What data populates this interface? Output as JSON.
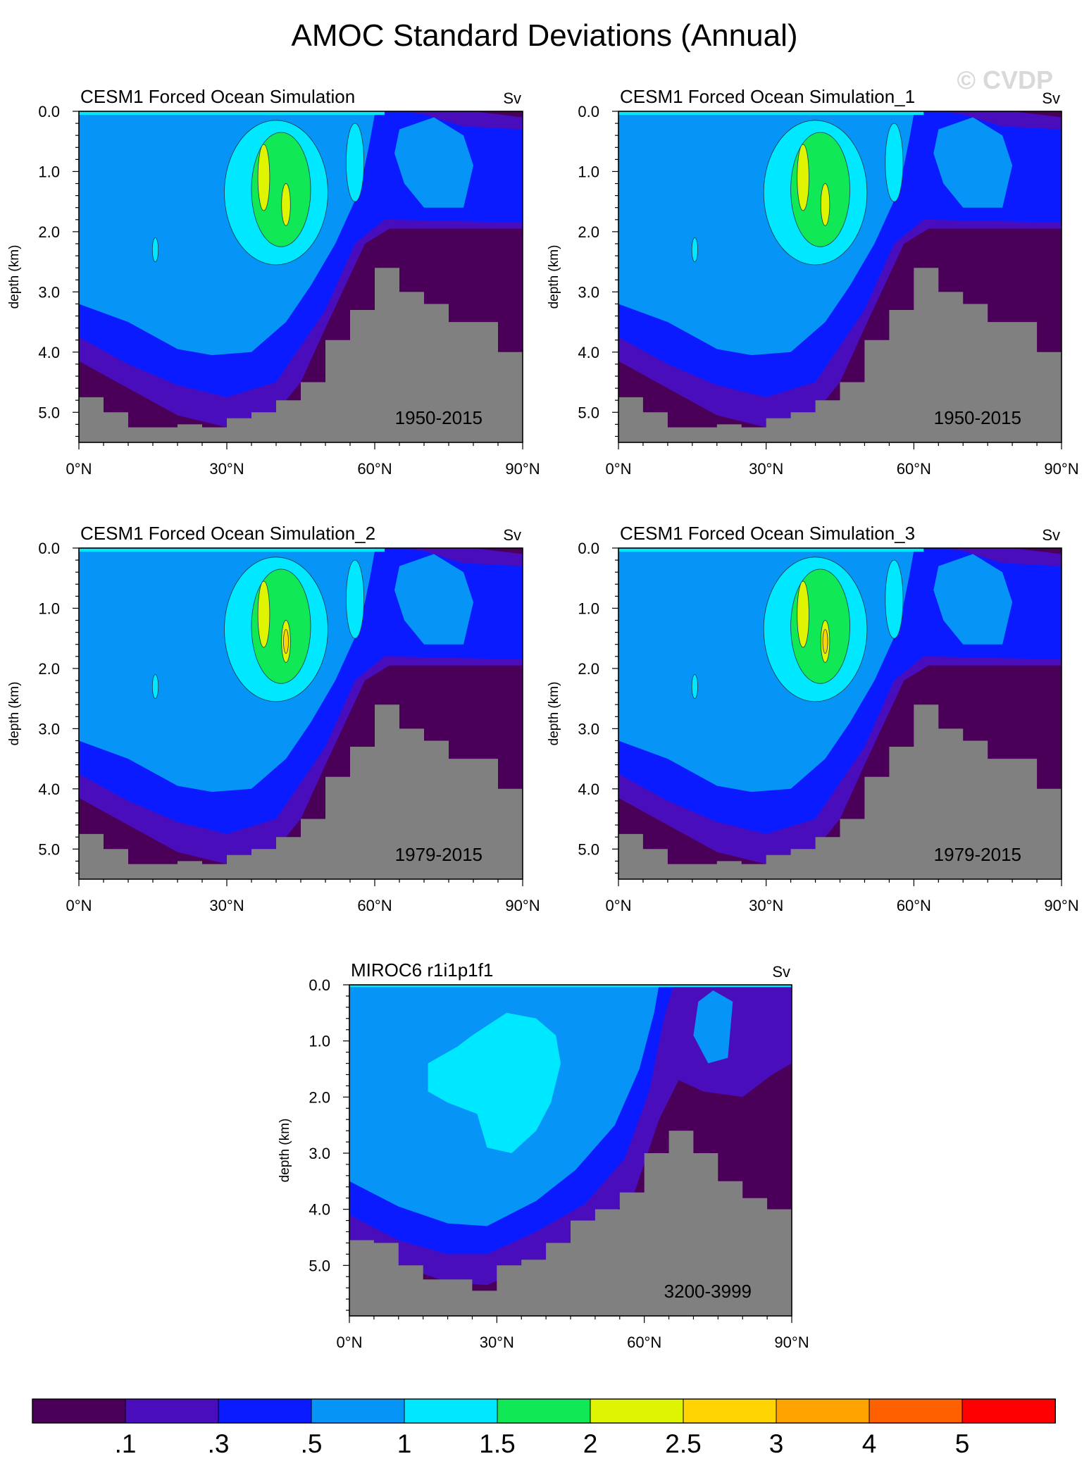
{
  "title": "AMOC Standard Deviations (Annual)",
  "watermark": "© CVDP",
  "chart_data": [
    {
      "type": "contour",
      "title": "CESM1 Forced Ocean Simulation",
      "units": "Sv",
      "period": "1950-2015",
      "xlabel": "",
      "ylabel": "depth (km)",
      "xticks": [
        "0°N",
        "30°N",
        "60°N",
        "90°N"
      ],
      "yticks": [
        "0.0",
        "1.0",
        "2.0",
        "3.0",
        "4.0",
        "5.0"
      ],
      "xlim": [
        0,
        90
      ],
      "ylim": [
        5.5,
        0
      ],
      "max_std_sv": 2.5,
      "seafloor_km": [
        [
          0,
          4.75
        ],
        [
          5,
          5.0
        ],
        [
          10,
          5.25
        ],
        [
          15,
          5.25
        ],
        [
          20,
          5.2
        ],
        [
          25,
          5.25
        ],
        [
          30,
          5.1
        ],
        [
          35,
          5.0
        ],
        [
          40,
          4.8
        ],
        [
          45,
          4.5
        ],
        [
          50,
          3.8
        ],
        [
          55,
          3.3
        ],
        [
          60,
          2.6
        ],
        [
          65,
          3.0
        ],
        [
          70,
          3.2
        ],
        [
          75,
          3.5
        ],
        [
          80,
          3.5
        ],
        [
          85,
          4.0
        ],
        [
          90,
          4.0
        ]
      ]
    },
    {
      "type": "contour",
      "title": "CESM1 Forced Ocean Simulation_1",
      "units": "Sv",
      "period": "1950-2015",
      "xlabel": "",
      "ylabel": "depth (km)",
      "xticks": [
        "0°N",
        "30°N",
        "60°N",
        "90°N"
      ],
      "yticks": [
        "0.0",
        "1.0",
        "2.0",
        "3.0",
        "4.0",
        "5.0"
      ],
      "xlim": [
        0,
        90
      ],
      "ylim": [
        5.5,
        0
      ],
      "max_std_sv": 2.5,
      "seafloor_km": [
        [
          0,
          4.75
        ],
        [
          5,
          5.0
        ],
        [
          10,
          5.25
        ],
        [
          15,
          5.25
        ],
        [
          20,
          5.2
        ],
        [
          25,
          5.25
        ],
        [
          30,
          5.1
        ],
        [
          35,
          5.0
        ],
        [
          40,
          4.8
        ],
        [
          45,
          4.5
        ],
        [
          50,
          3.8
        ],
        [
          55,
          3.3
        ],
        [
          60,
          2.6
        ],
        [
          65,
          3.0
        ],
        [
          70,
          3.2
        ],
        [
          75,
          3.5
        ],
        [
          80,
          3.5
        ],
        [
          85,
          4.0
        ],
        [
          90,
          4.0
        ]
      ]
    },
    {
      "type": "contour",
      "title": "CESM1 Forced Ocean Simulation_2",
      "units": "Sv",
      "period": "1979-2015",
      "xlabel": "",
      "ylabel": "depth (km)",
      "xticks": [
        "0°N",
        "30°N",
        "60°N",
        "90°N"
      ],
      "yticks": [
        "0.0",
        "1.0",
        "2.0",
        "3.0",
        "4.0",
        "5.0"
      ],
      "xlim": [
        0,
        90
      ],
      "ylim": [
        5.5,
        0
      ],
      "max_std_sv": 3.0,
      "seafloor_km": [
        [
          0,
          4.75
        ],
        [
          5,
          5.0
        ],
        [
          10,
          5.25
        ],
        [
          15,
          5.25
        ],
        [
          20,
          5.2
        ],
        [
          25,
          5.25
        ],
        [
          30,
          5.1
        ],
        [
          35,
          5.0
        ],
        [
          40,
          4.8
        ],
        [
          45,
          4.5
        ],
        [
          50,
          3.8
        ],
        [
          55,
          3.3
        ],
        [
          60,
          2.6
        ],
        [
          65,
          3.0
        ],
        [
          70,
          3.2
        ],
        [
          75,
          3.5
        ],
        [
          80,
          3.5
        ],
        [
          85,
          4.0
        ],
        [
          90,
          4.0
        ]
      ]
    },
    {
      "type": "contour",
      "title": "CESM1 Forced Ocean Simulation_3",
      "units": "Sv",
      "period": "1979-2015",
      "xlabel": "",
      "ylabel": "depth (km)",
      "xticks": [
        "0°N",
        "30°N",
        "60°N",
        "90°N"
      ],
      "yticks": [
        "0.0",
        "1.0",
        "2.0",
        "3.0",
        "4.0",
        "5.0"
      ],
      "xlim": [
        0,
        90
      ],
      "ylim": [
        5.5,
        0
      ],
      "max_std_sv": 3.0,
      "seafloor_km": [
        [
          0,
          4.75
        ],
        [
          5,
          5.0
        ],
        [
          10,
          5.25
        ],
        [
          15,
          5.25
        ],
        [
          20,
          5.2
        ],
        [
          25,
          5.25
        ],
        [
          30,
          5.1
        ],
        [
          35,
          5.0
        ],
        [
          40,
          4.8
        ],
        [
          45,
          4.5
        ],
        [
          50,
          3.8
        ],
        [
          55,
          3.3
        ],
        [
          60,
          2.6
        ],
        [
          65,
          3.0
        ],
        [
          70,
          3.2
        ],
        [
          75,
          3.5
        ],
        [
          80,
          3.5
        ],
        [
          85,
          4.0
        ],
        [
          90,
          4.0
        ]
      ]
    },
    {
      "type": "contour",
      "title": "MIROC6 r1i1p1f1",
      "units": "Sv",
      "period": "3200-3999",
      "xlabel": "",
      "ylabel": "depth (km)",
      "xticks": [
        "0°N",
        "30°N",
        "60°N",
        "90°N"
      ],
      "yticks": [
        "0.0",
        "1.0",
        "2.0",
        "3.0",
        "4.0",
        "5.0"
      ],
      "xlim": [
        0,
        90
      ],
      "ylim": [
        5.9,
        0
      ],
      "max_std_sv": 1.5,
      "seafloor_km": [
        [
          0,
          4.55
        ],
        [
          5,
          4.6
        ],
        [
          10,
          5.0
        ],
        [
          15,
          5.25
        ],
        [
          20,
          5.25
        ],
        [
          25,
          5.45
        ],
        [
          30,
          5.0
        ],
        [
          35,
          4.9
        ],
        [
          40,
          4.6
        ],
        [
          45,
          4.2
        ],
        [
          50,
          4.0
        ],
        [
          55,
          3.7
        ],
        [
          60,
          3.0
        ],
        [
          65,
          2.6
        ],
        [
          70,
          3.0
        ],
        [
          75,
          3.5
        ],
        [
          80,
          3.8
        ],
        [
          85,
          4.0
        ],
        [
          90,
          4.2
        ]
      ]
    }
  ],
  "colorbar": {
    "labels": [
      ".1",
      ".3",
      ".5",
      "1",
      "1.5",
      "2",
      "2.5",
      "3",
      "4",
      "5"
    ],
    "colors": [
      "#4a0058",
      "#4a0dbb",
      "#0a1bff",
      "#0794f7",
      "#00e8ff",
      "#10e856",
      "#dff400",
      "#ffd400",
      "#ffa300",
      "#ff6000",
      "#ff0000"
    ]
  },
  "colors": {
    "seafloor": "#808080",
    "frame": "#000000"
  }
}
